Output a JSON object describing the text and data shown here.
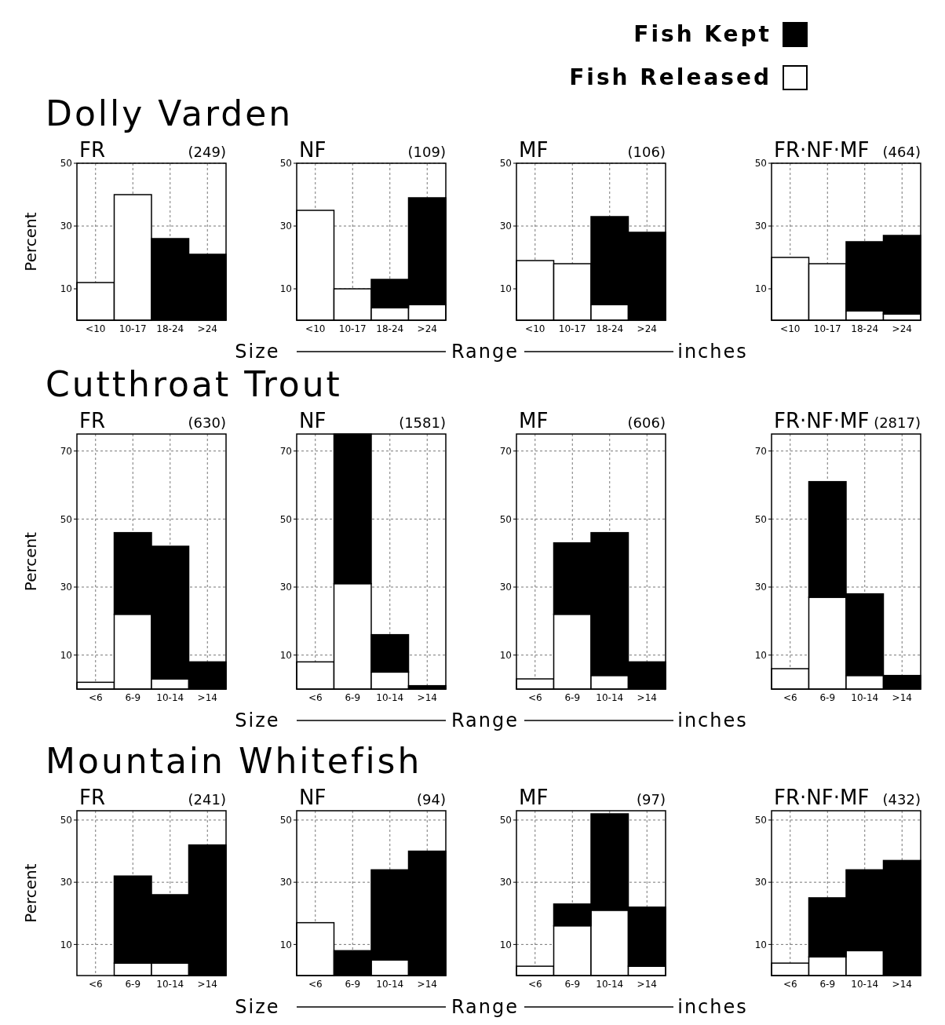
{
  "chart_data": [
    {
      "type": "bar",
      "stacked": true,
      "title": "FR",
      "subtitle": "(249)",
      "annotations": [
        "Dolly Varden"
      ],
      "ylabel": "Percent",
      "xlabel": "Size Range inches",
      "legend": "top right",
      "categories": [
        "<10",
        "10-17",
        "18-24",
        ">24"
      ],
      "ylim": [
        0,
        50
      ],
      "yticks": [
        10,
        30,
        50
      ],
      "grid": true,
      "series": [
        {
          "name": "Fish Released",
          "color": "#ffffff",
          "values": [
            12,
            40,
            0,
            0
          ]
        },
        {
          "name": "Fish Kept",
          "color": "#000000",
          "values": [
            0,
            0,
            26,
            21
          ]
        }
      ]
    },
    {
      "type": "bar",
      "stacked": true,
      "title": "NF",
      "subtitle": "(109)",
      "categories": [
        "<10",
        "10-17",
        "18-24",
        ">24"
      ],
      "ylim": [
        0,
        50
      ],
      "yticks": [
        10,
        30,
        50
      ],
      "grid": true,
      "series": [
        {
          "color": "#ffffff",
          "values": [
            35,
            10,
            4,
            5
          ]
        },
        {
          "color": "#000000",
          "values": [
            0,
            0,
            9,
            34
          ]
        }
      ]
    },
    {
      "type": "bar",
      "stacked": true,
      "title": "MF",
      "subtitle": "(106)",
      "categories": [
        "<10",
        "10-17",
        "18-24",
        ">24"
      ],
      "ylim": [
        0,
        50
      ],
      "yticks": [
        10,
        30,
        50
      ],
      "grid": true,
      "series": [
        {
          "color": "#ffffff",
          "values": [
            19,
            18,
            5,
            0
          ]
        },
        {
          "color": "#000000",
          "values": [
            0,
            0,
            28,
            28
          ]
        }
      ]
    },
    {
      "type": "bar",
      "stacked": true,
      "title": "FR·NF·MF",
      "subtitle": "(464)",
      "categories": [
        "<10",
        "10-17",
        "18-24",
        ">24"
      ],
      "ylim": [
        0,
        50
      ],
      "yticks": [
        10,
        30,
        50
      ],
      "grid": true,
      "series": [
        {
          "color": "#ffffff",
          "values": [
            20,
            18,
            3,
            2
          ]
        },
        {
          "color": "#000000",
          "values": [
            0,
            0,
            22,
            25
          ]
        }
      ]
    },
    {
      "type": "bar",
      "stacked": true,
      "title": "FR",
      "subtitle": "(630)",
      "annotations": [
        "Cutthroat Trout"
      ],
      "ylabel": "Percent",
      "xlabel": "Size Range inches",
      "categories": [
        "<6",
        "6-9",
        "10-14",
        ">14"
      ],
      "ylim": [
        0,
        75
      ],
      "yticks": [
        10,
        30,
        50,
        70
      ],
      "grid": true,
      "series": [
        {
          "color": "#ffffff",
          "values": [
            2,
            22,
            3,
            0
          ]
        },
        {
          "color": "#000000",
          "values": [
            0,
            24,
            39,
            8
          ]
        }
      ]
    },
    {
      "type": "bar",
      "stacked": true,
      "title": "NF",
      "subtitle": "(1581)",
      "categories": [
        "<6",
        "6-9",
        "10-14",
        ">14"
      ],
      "ylim": [
        0,
        75
      ],
      "yticks": [
        10,
        30,
        50,
        70
      ],
      "grid": true,
      "series": [
        {
          "color": "#ffffff",
          "values": [
            8,
            31,
            5,
            0
          ]
        },
        {
          "color": "#000000",
          "values": [
            0,
            44,
            11,
            1
          ]
        }
      ]
    },
    {
      "type": "bar",
      "stacked": true,
      "title": "MF",
      "subtitle": "(606)",
      "categories": [
        "<6",
        "6-9",
        "10-14",
        ">14"
      ],
      "ylim": [
        0,
        75
      ],
      "yticks": [
        10,
        30,
        50,
        70
      ],
      "grid": true,
      "series": [
        {
          "color": "#ffffff",
          "values": [
            3,
            22,
            4,
            0
          ]
        },
        {
          "color": "#000000",
          "values": [
            0,
            21,
            42,
            8
          ]
        }
      ]
    },
    {
      "type": "bar",
      "stacked": true,
      "title": "FR·NF·MF",
      "subtitle": "(2817)",
      "categories": [
        "<6",
        "6-9",
        "10-14",
        ">14"
      ],
      "ylim": [
        0,
        75
      ],
      "yticks": [
        10,
        30,
        50,
        70
      ],
      "grid": true,
      "series": [
        {
          "color": "#ffffff",
          "values": [
            6,
            27,
            4,
            0
          ]
        },
        {
          "color": "#000000",
          "values": [
            0,
            34,
            24,
            4
          ]
        }
      ]
    },
    {
      "type": "bar",
      "stacked": true,
      "title": "FR",
      "subtitle": "(241)",
      "annotations": [
        "Mountain Whitefish"
      ],
      "ylabel": "Percent",
      "xlabel": "Size Range inches",
      "categories": [
        "<6",
        "6-9",
        "10-14",
        ">14"
      ],
      "ylim": [
        0,
        53
      ],
      "yticks": [
        10,
        30,
        50
      ],
      "grid": true,
      "series": [
        {
          "color": "#ffffff",
          "values": [
            0,
            4,
            4,
            0
          ]
        },
        {
          "color": "#000000",
          "values": [
            0,
            28,
            22,
            42
          ]
        }
      ]
    },
    {
      "type": "bar",
      "stacked": true,
      "title": "NF",
      "subtitle": "(94)",
      "categories": [
        "<6",
        "6-9",
        "10-14",
        ">14"
      ],
      "ylim": [
        0,
        53
      ],
      "yticks": [
        10,
        30,
        50
      ],
      "grid": true,
      "series": [
        {
          "color": "#ffffff",
          "values": [
            17,
            0,
            5,
            0
          ]
        },
        {
          "color": "#000000",
          "values": [
            0,
            8,
            29,
            40
          ]
        }
      ]
    },
    {
      "type": "bar",
      "stacked": true,
      "title": "MF",
      "subtitle": "(97)",
      "categories": [
        "<6",
        "6-9",
        "10-14",
        ">14"
      ],
      "ylim": [
        0,
        53
      ],
      "yticks": [
        10,
        30,
        50
      ],
      "grid": true,
      "series": [
        {
          "color": "#ffffff",
          "values": [
            3,
            16,
            21,
            3
          ]
        },
        {
          "color": "#000000",
          "values": [
            0,
            7,
            31,
            19
          ]
        }
      ]
    },
    {
      "type": "bar",
      "stacked": true,
      "title": "FR·NF·MF",
      "subtitle": "(432)",
      "categories": [
        "<6",
        "6-9",
        "10-14",
        ">14"
      ],
      "ylim": [
        0,
        53
      ],
      "yticks": [
        10,
        30,
        50
      ],
      "grid": true,
      "series": [
        {
          "color": "#ffffff",
          "values": [
            4,
            6,
            8,
            0
          ]
        },
        {
          "color": "#000000",
          "values": [
            0,
            19,
            26,
            37
          ]
        }
      ]
    }
  ]
}
